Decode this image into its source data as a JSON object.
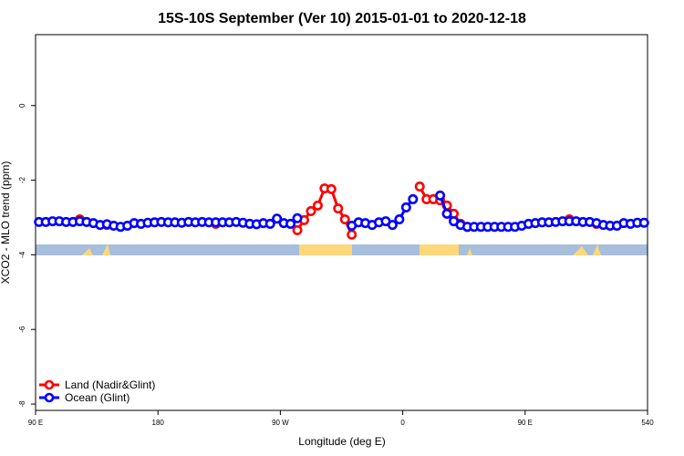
{
  "chart_data": {
    "type": "line",
    "title": "15S-10S September (Ver 10)   2015-01-01 to 2020-12-18",
    "x_label": "Longitude (deg E)",
    "y_label": "XCO2 - MLO trend (ppm)",
    "x": [
      92.5,
      97.5,
      102.5,
      107.5,
      112.5,
      117.5,
      122.5,
      127.5,
      132.5,
      137.5,
      142.5,
      147.5,
      152.5,
      157.5,
      162.5,
      167.5,
      172.5,
      177.5,
      182.5,
      187.5,
      192.5,
      197.5,
      202.5,
      207.5,
      212.5,
      217.5,
      222.5,
      227.5,
      232.5,
      237.5,
      242.5,
      247.5,
      252.5,
      257.5,
      262.5,
      267.5,
      272.5,
      277.5,
      282.5,
      287.5,
      292.5,
      297.5,
      302.5,
      307.5,
      312.5,
      317.5,
      322.5,
      327.5,
      332.5,
      337.5,
      342.5,
      347.5,
      352.5,
      357.5,
      362.5,
      367.5,
      372.5,
      377.5,
      382.5,
      387.5,
      392.5,
      397.5,
      402.5,
      407.5,
      412.5,
      417.5,
      422.5,
      427.5,
      432.5,
      437.5,
      442.5,
      447.5,
      452.5,
      457.5,
      462.5,
      467.5,
      472.5,
      477.5,
      482.5,
      487.5,
      492.5,
      497.5,
      502.5,
      507.5,
      512.5,
      517.5,
      522.5,
      527.5,
      532.5,
      537.5
    ],
    "series": [
      {
        "name": "Land (Nadir&Glint)",
        "color": "#ff0000",
        "values": [
          null,
          null,
          null,
          null,
          null,
          null,
          -3.05,
          null,
          null,
          null,
          -3.2,
          null,
          null,
          null,
          null,
          null,
          null,
          null,
          null,
          null,
          null,
          null,
          null,
          null,
          null,
          null,
          -3.17,
          null,
          null,
          null,
          null,
          null,
          null,
          null,
          null,
          null,
          null,
          null,
          -3.34,
          -3.07,
          -2.83,
          -2.68,
          -2.22,
          -2.24,
          -2.76,
          -3.05,
          -3.46,
          null,
          null,
          null,
          null,
          null,
          null,
          null,
          null,
          null,
          -2.17,
          -2.51,
          -2.51,
          -2.54,
          -2.68,
          -2.9,
          -3.17,
          -3.25,
          null,
          null,
          null,
          null,
          null,
          null,
          null,
          null,
          null,
          null,
          null,
          null,
          null,
          null,
          -3.05,
          null,
          null,
          null,
          -3.17,
          null,
          null,
          null,
          null,
          null,
          null,
          null
        ]
      },
      {
        "name": "Ocean (Glint)",
        "color": "#0000ff",
        "values": [
          -3.12,
          -3.12,
          -3.1,
          -3.1,
          -3.12,
          -3.12,
          -3.1,
          -3.12,
          -3.15,
          -3.2,
          -3.18,
          -3.22,
          -3.25,
          -3.22,
          -3.15,
          -3.17,
          -3.14,
          -3.13,
          -3.12,
          -3.13,
          -3.13,
          -3.14,
          -3.12,
          -3.13,
          -3.12,
          -3.13,
          -3.13,
          -3.13,
          -3.13,
          -3.12,
          -3.14,
          -3.17,
          -3.18,
          -3.15,
          -3.17,
          -3.03,
          -3.15,
          -3.17,
          -3.02,
          null,
          null,
          null,
          null,
          null,
          null,
          null,
          -3.22,
          -3.13,
          -3.15,
          -3.2,
          -3.13,
          -3.1,
          -3.2,
          -3.05,
          -2.73,
          -2.51,
          null,
          null,
          null,
          -2.41,
          -2.9,
          -3.1,
          -3.2,
          -3.25,
          -3.25,
          -3.25,
          -3.25,
          -3.25,
          -3.25,
          -3.25,
          -3.25,
          -3.22,
          -3.17,
          -3.15,
          -3.13,
          -3.13,
          -3.12,
          -3.1,
          -3.1,
          -3.1,
          -3.12,
          -3.12,
          -3.15,
          -3.2,
          -3.22,
          -3.22,
          -3.15,
          -3.17,
          -3.14,
          -3.14
        ]
      }
    ],
    "xlim": [
      90,
      540
    ],
    "xticks": [
      {
        "value": 90,
        "label": "90 E"
      },
      180,
      {
        "value": 270,
        "label": "90 W"
      },
      {
        "value": 360,
        "label": "0"
      },
      {
        "value": 450,
        "label": "90 E"
      },
      540
    ],
    "ylim": [
      -8.17,
      1.9
    ],
    "yticks": [
      0,
      -2,
      -4,
      -6,
      -8
    ],
    "legend": "bottom-left"
  }
}
